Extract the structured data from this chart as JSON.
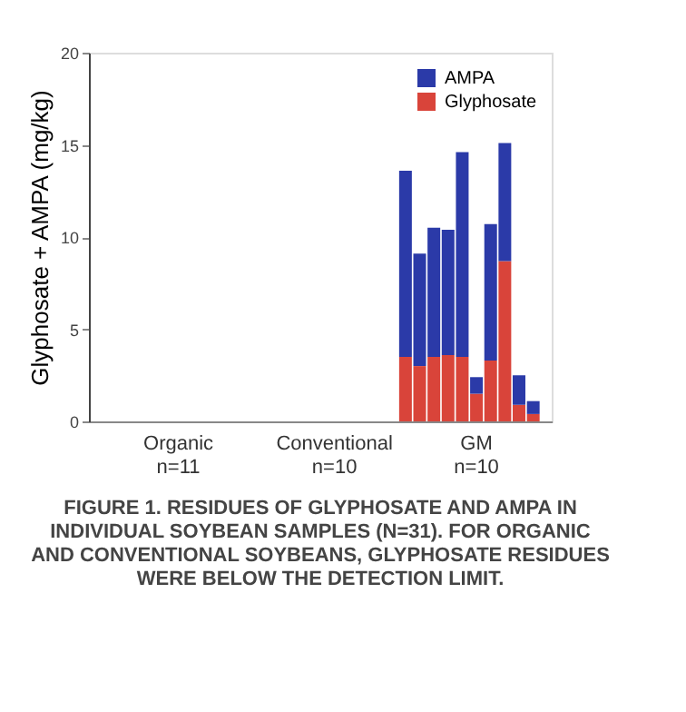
{
  "chart_data": {
    "type": "bar",
    "stacked": true,
    "ylabel": "Glyphosate + AMPA (mg/kg)",
    "categories": [
      null,
      null,
      null,
      null,
      null,
      "Organic\nn=11",
      null,
      null,
      null,
      null,
      null,
      null,
      null,
      null,
      null,
      null,
      "Conventional\nn=10",
      null,
      null,
      null,
      null,
      null,
      null,
      null,
      null,
      null,
      "GM\nn=10",
      null,
      null,
      null,
      null
    ],
    "series": [
      {
        "name": "Glyphosate",
        "color": "#d9443a",
        "values": [
          0,
          0,
          0,
          0,
          0,
          0,
          0,
          0,
          0,
          0,
          0,
          0,
          0,
          0,
          0,
          0,
          0,
          0,
          0,
          0,
          0,
          3.5,
          3.0,
          3.5,
          3.6,
          3.5,
          1.5,
          3.3,
          8.7,
          0.9,
          0.4
        ]
      },
      {
        "name": "AMPA",
        "color": "#2b3aa8",
        "values": [
          0,
          0,
          0,
          0,
          0,
          0,
          0,
          0,
          0,
          0,
          0,
          0,
          0,
          0,
          0,
          0,
          0,
          0,
          0,
          0,
          0,
          10.1,
          6.1,
          7.0,
          6.8,
          11.1,
          0.9,
          7.4,
          6.4,
          1.6,
          0.7
        ]
      }
    ],
    "ylim": [
      0,
      20
    ],
    "yticks": [
      0,
      5,
      10,
      15,
      20
    ],
    "grid": false,
    "legend": "top right",
    "annotations": [
      "FIGURE 1. RESIDUES OF GLYPHOSATE AND AMPA IN INDIVIDUAL SOYBEAN SAMPLES (N=31). FOR ORGANIC AND CONVENTIONAL SOYBEANS, GLYPHOSATE RESIDUES WERE BELOW THE DETECTION LIMIT."
    ]
  }
}
